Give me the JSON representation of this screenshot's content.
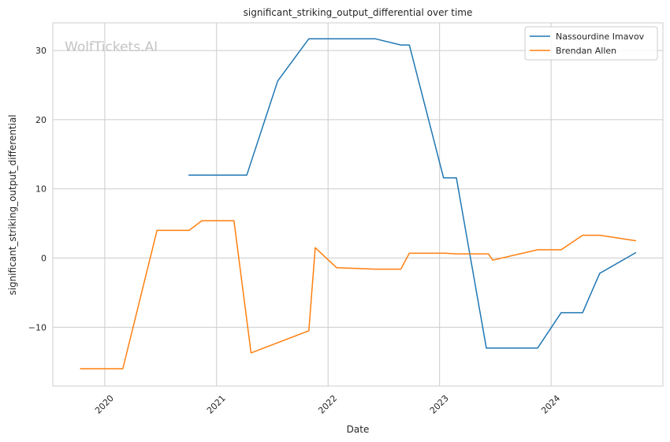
{
  "chart_data": {
    "type": "line",
    "title": "significant_striking_output_differential over time",
    "xlabel": "Date",
    "ylabel": "significant_striking_output_differential",
    "watermark": "WolfTickets.AI",
    "x_ticks": [
      "2020",
      "2021",
      "2022",
      "2023",
      "2024"
    ],
    "y_ticks": [
      -10,
      0,
      10,
      20,
      30
    ],
    "xlim": [
      "2019-07-15",
      "2025-01-01"
    ],
    "ylim": [
      -18.5,
      34
    ],
    "grid": true,
    "legend_position": "top-right",
    "series": [
      {
        "name": "Nassourdine Imavov",
        "color": "#1f77b4",
        "points": [
          [
            "2020-10-01",
            12.0
          ],
          [
            "2021-04-10",
            12.0
          ],
          [
            "2021-07-20",
            25.6
          ],
          [
            "2021-10-30",
            31.7
          ],
          [
            "2022-06-04",
            31.7
          ],
          [
            "2022-08-27",
            30.8
          ],
          [
            "2022-09-24",
            30.8
          ],
          [
            "2023-01-14",
            11.6
          ],
          [
            "2023-02-25",
            11.6
          ],
          [
            "2023-06-03",
            -13.0
          ],
          [
            "2023-11-18",
            -13.0
          ],
          [
            "2024-02-03",
            -7.9
          ],
          [
            "2024-04-13",
            -7.9
          ],
          [
            "2024-06-08",
            -2.2
          ],
          [
            "2024-10-05",
            0.8
          ]
        ]
      },
      {
        "name": "Brendan Allen",
        "color": "#ff7f0e",
        "points": [
          [
            "2019-10-12",
            -16.0
          ],
          [
            "2020-02-29",
            -16.0
          ],
          [
            "2020-06-20",
            4.0
          ],
          [
            "2020-10-03",
            4.0
          ],
          [
            "2020-11-14",
            5.4
          ],
          [
            "2021-02-27",
            5.4
          ],
          [
            "2021-04-24",
            -13.7
          ],
          [
            "2021-10-30",
            -10.5
          ],
          [
            "2021-11-20",
            1.5
          ],
          [
            "2022-01-29",
            -1.4
          ],
          [
            "2022-06-04",
            -1.6
          ],
          [
            "2022-08-27",
            -1.6
          ],
          [
            "2022-09-24",
            0.7
          ],
          [
            "2023-01-21",
            0.7
          ],
          [
            "2023-02-25",
            0.6
          ],
          [
            "2023-06-10",
            0.6
          ],
          [
            "2023-06-24",
            -0.3
          ],
          [
            "2023-11-18",
            1.2
          ],
          [
            "2024-02-03",
            1.2
          ],
          [
            "2024-04-13",
            3.3
          ],
          [
            "2024-06-08",
            3.3
          ],
          [
            "2024-10-05",
            2.5
          ]
        ]
      }
    ]
  }
}
